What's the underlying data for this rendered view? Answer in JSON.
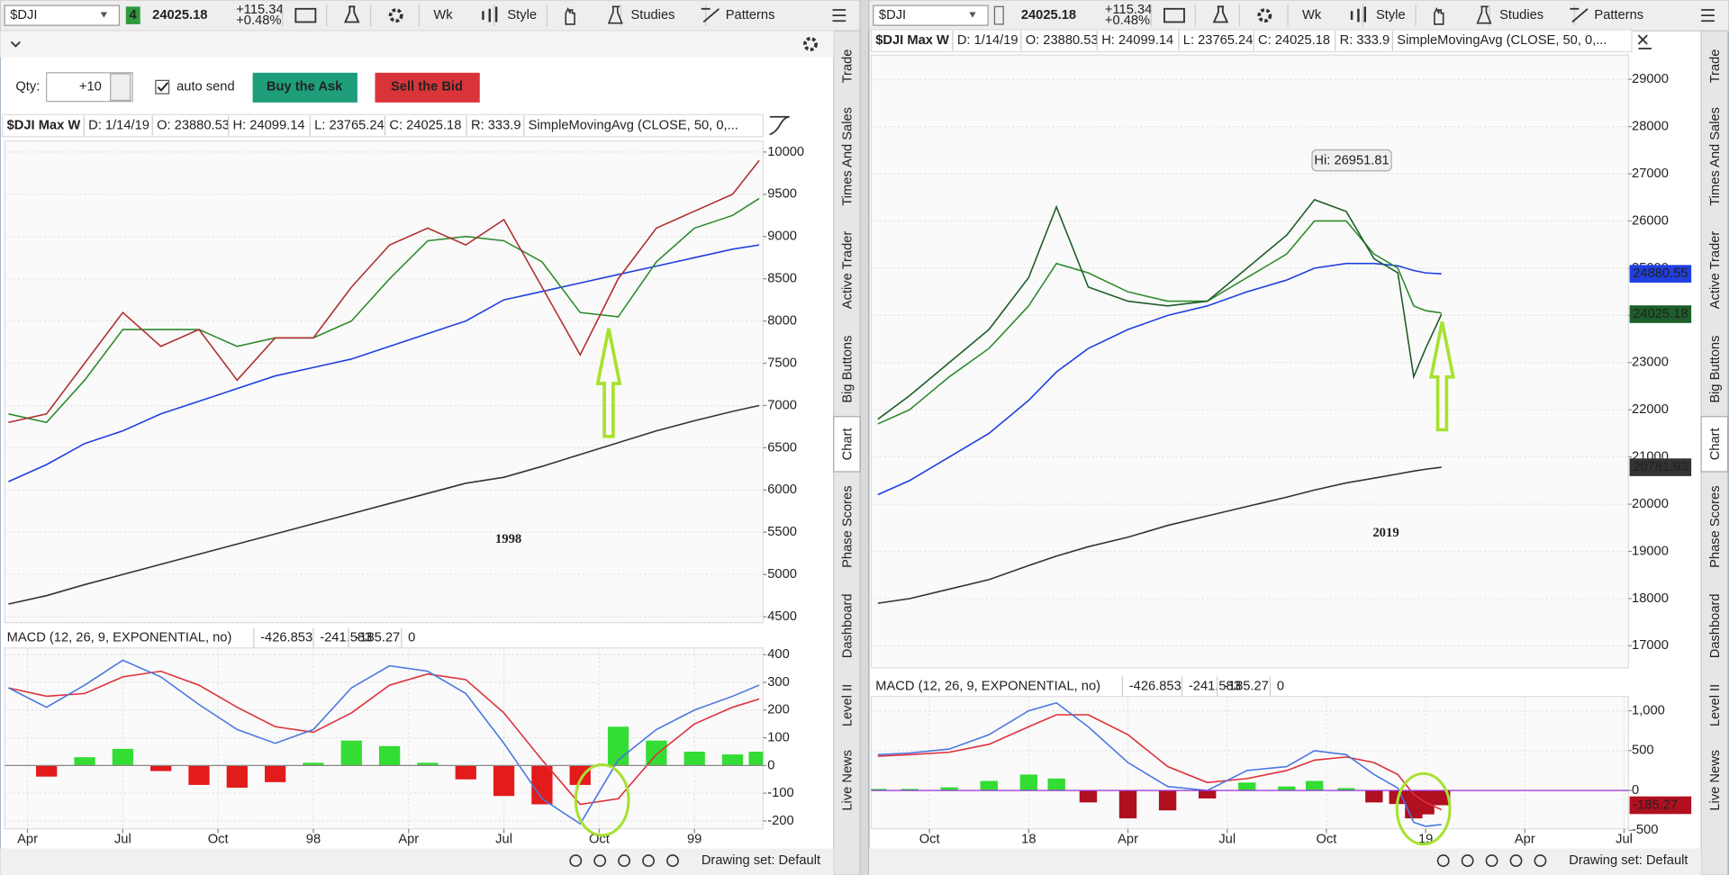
{
  "toolbar": {
    "symbol": "$DJI",
    "badge": "4",
    "price": "24025.18",
    "change": "+115.34",
    "change_pct": "+0.48%",
    "interval": "Wk",
    "style": "Style",
    "studies": "Studies",
    "patterns": "Patterns"
  },
  "order": {
    "qty_label": "Qty:",
    "qty": "+10",
    "auto_send": "auto send",
    "buy": "Buy the Ask",
    "sell": "Sell the Bid"
  },
  "header": {
    "name": "$DJI Max W",
    "date": "D: 1/14/19",
    "open": "O: 23880.53",
    "high": "H: 24099.14",
    "low": "L: 23765.24",
    "close": "C: 24025.18",
    "range": "R: 333.9",
    "study": "SimpleMovingAvg (CLOSE, 50, 0,..."
  },
  "macd_header": {
    "name": "MACD (12, 26, 9, EXPONENTIAL, no)",
    "value": "-426.853",
    "avg": "-241.583",
    "diff": "-185.27",
    "zero": "0"
  },
  "sidebar_tabs": [
    "Trade",
    "Times And Sales",
    "Active Trader",
    "Big Buttons",
    "Chart",
    "Phase Scores",
    "Dashboard",
    "Level II",
    "Live News"
  ],
  "drawing_set": "Drawing set: Default",
  "chart_data": [
    {
      "type": "line",
      "annotation": "1998",
      "xlim": [
        1997.19,
        1999.18
      ],
      "ylim": [
        4430,
        10130
      ],
      "yticks": [
        4500,
        5000,
        5500,
        6000,
        6500,
        7000,
        7500,
        8000,
        8500,
        9000,
        9500,
        10000
      ],
      "grid": true,
      "x": [
        1997.2,
        1997.3,
        1997.4,
        1997.5,
        1997.6,
        1997.7,
        1997.8,
        1997.9,
        1998.0,
        1998.1,
        1998.2,
        1998.3,
        1998.4,
        1998.5,
        1998.6,
        1998.7,
        1998.8,
        1998.9,
        1999.0,
        1999.1,
        1999.17
      ],
      "series": [
        {
          "color": "#333333",
          "values": [
            4650,
            4750,
            4880,
            5000,
            5120,
            5240,
            5360,
            5480,
            5600,
            5720,
            5840,
            5960,
            6080,
            6150,
            6280,
            6420,
            6560,
            6700,
            6820,
            6930,
            7000
          ]
        },
        {
          "color": "#1f3fe0",
          "values": [
            6100,
            6300,
            6550,
            6700,
            6900,
            7050,
            7200,
            7350,
            7450,
            7550,
            7700,
            7850,
            8000,
            8250,
            8350,
            8450,
            8550,
            8650,
            8750,
            8850,
            8900
          ]
        },
        {
          "color": "#2e8b2e",
          "values": [
            6900,
            6800,
            7300,
            7900,
            7900,
            7900,
            7700,
            7800,
            7800,
            8000,
            8500,
            8950,
            9000,
            8950,
            8700,
            8100,
            8050,
            8700,
            9100,
            9250,
            9450
          ]
        },
        {
          "color": "#b03030",
          "values": [
            6800,
            6900,
            7500,
            8100,
            7700,
            7900,
            7300,
            7800,
            7800,
            8400,
            8900,
            9100,
            8900,
            9200,
            8400,
            7600,
            8500,
            9100,
            9300,
            9500,
            9900
          ]
        }
      ]
    },
    {
      "type": "macd",
      "xlim": [
        1997.19,
        1999.18
      ],
      "ylim": [
        -228,
        424
      ],
      "yticks": [
        -200,
        -100,
        0,
        100,
        200,
        300,
        400
      ],
      "xticks": [
        {
          "value": 1997.25,
          "label": "Apr"
        },
        {
          "value": 1997.5,
          "label": "Jul"
        },
        {
          "value": 1997.75,
          "label": "Oct"
        },
        {
          "value": 1998.0,
          "label": "98"
        },
        {
          "value": 1998.25,
          "label": "Apr"
        },
        {
          "value": 1998.5,
          "label": "Jul"
        },
        {
          "value": 1998.75,
          "label": "Oct"
        },
        {
          "value": 1999.0,
          "label": "99"
        }
      ],
      "grid": true,
      "zero_line_color": "#888888",
      "x": [
        1997.2,
        1997.3,
        1997.4,
        1997.5,
        1997.6,
        1997.7,
        1997.8,
        1997.9,
        1998.0,
        1998.1,
        1998.2,
        1998.3,
        1998.4,
        1998.5,
        1998.6,
        1998.7,
        1998.8,
        1998.9,
        1999.0,
        1999.1,
        1999.17
      ],
      "series": [
        {
          "kind": "histogram",
          "color_up": "#33dd33",
          "color_down": "#e31b1b",
          "values": [
            0,
            -40,
            30,
            60,
            -20,
            -70,
            -80,
            -60,
            10,
            90,
            70,
            10,
            -50,
            -110,
            -140,
            -70,
            140,
            90,
            50,
            40,
            50
          ]
        },
        {
          "kind": "line",
          "color": "#e0303a",
          "values": [
            280,
            250,
            260,
            320,
            340,
            290,
            210,
            140,
            120,
            190,
            290,
            330,
            310,
            190,
            20,
            -140,
            -120,
            40,
            150,
            210,
            240
          ]
        },
        {
          "kind": "line",
          "color": "#4a78e0",
          "values": [
            280,
            210,
            290,
            380,
            320,
            220,
            130,
            80,
            130,
            280,
            360,
            340,
            260,
            80,
            -120,
            -210,
            20,
            130,
            200,
            250,
            290
          ]
        }
      ]
    },
    {
      "type": "line",
      "annotation": "2019",
      "annotation_hi": "Hi: 26951.81",
      "xlim": [
        2017.603,
        2019.511
      ],
      "ylim": [
        16533,
        29514
      ],
      "yticks": [
        17000,
        18000,
        19000,
        20000,
        21000,
        22000,
        23000,
        24000,
        25000,
        26000,
        27000,
        28000,
        29000
      ],
      "grid": true,
      "x": [
        2017.62,
        2017.7,
        2017.8,
        2017.9,
        2018.0,
        2018.07,
        2018.15,
        2018.25,
        2018.35,
        2018.45,
        2018.55,
        2018.65,
        2018.72,
        2018.8,
        2018.87,
        2018.93,
        2018.97,
        2019.0,
        2019.04
      ],
      "series": [
        {
          "color": "#333333",
          "badge": true,
          "values": [
            17900,
            18000,
            18200,
            18400,
            18700,
            18900,
            19100,
            19300,
            19550,
            19750,
            19950,
            20150,
            20300,
            20450,
            20550,
            20640,
            20700,
            20740,
            20781.93
          ]
        },
        {
          "color": "#1f3fe0",
          "badge": true,
          "values": [
            20200,
            20500,
            21000,
            21500,
            22200,
            22800,
            23300,
            23700,
            24000,
            24200,
            24500,
            24750,
            25000,
            25100,
            25100,
            25050,
            24950,
            24900,
            24880.55
          ]
        },
        {
          "color": "#2e8b2e",
          "values": [
            21700,
            22000,
            22700,
            23300,
            24200,
            25100,
            24900,
            24500,
            24300,
            24300,
            24800,
            25300,
            26000,
            26000,
            25300,
            25000,
            24200,
            24100,
            24050
          ]
        },
        {
          "color": "#1e5e2a",
          "badge": true,
          "values": [
            21800,
            22300,
            23000,
            23700,
            24800,
            26300,
            24600,
            24300,
            24200,
            24300,
            25000,
            25700,
            26450,
            26200,
            25200,
            24900,
            22700,
            23300,
            24025.18
          ]
        }
      ]
    },
    {
      "type": "macd",
      "xlim": [
        2017.603,
        2019.511
      ],
      "ylim": [
        -480,
        1180
      ],
      "yticks": [
        -500,
        0,
        500,
        {
          "value": 1000,
          "label": "1,000"
        }
      ],
      "xticks": [
        {
          "value": 2017.75,
          "label": "Oct"
        },
        {
          "value": 2018.0,
          "label": "18"
        },
        {
          "value": 2018.25,
          "label": "Apr"
        },
        {
          "value": 2018.5,
          "label": "Jul"
        },
        {
          "value": 2018.75,
          "label": "Oct"
        },
        {
          "value": 2019.0,
          "label": "19"
        },
        {
          "value": 2019.25,
          "label": "Apr"
        },
        {
          "value": 2019.5,
          "label": "Jul"
        }
      ],
      "grid": true,
      "zero_line_color": "#9b30d9",
      "x": [
        2017.62,
        2017.7,
        2017.8,
        2017.9,
        2018.0,
        2018.07,
        2018.15,
        2018.25,
        2018.35,
        2018.45,
        2018.55,
        2018.65,
        2018.72,
        2018.8,
        2018.87,
        2018.93,
        2018.97,
        2019.0,
        2019.04
      ],
      "series": [
        {
          "kind": "histogram",
          "color_up": "#33dd33",
          "color_down": "#b01020",
          "badge": true,
          "values": [
            20,
            20,
            40,
            120,
            200,
            150,
            -150,
            -350,
            -250,
            -100,
            100,
            50,
            120,
            30,
            -150,
            -170,
            -350,
            -300,
            -185.27
          ]
        },
        {
          "kind": "line",
          "color": "#e0303a",
          "values": [
            430,
            450,
            480,
            580,
            800,
            950,
            950,
            700,
            300,
            100,
            150,
            250,
            380,
            420,
            350,
            200,
            -50,
            -150,
            -241.583
          ]
        },
        {
          "kind": "line",
          "color": "#4a78e0",
          "values": [
            450,
            470,
            520,
            700,
            1000,
            1100,
            800,
            350,
            50,
            0,
            250,
            300,
            500,
            450,
            200,
            30,
            -400,
            -450,
            -426.853
          ]
        }
      ]
    }
  ]
}
